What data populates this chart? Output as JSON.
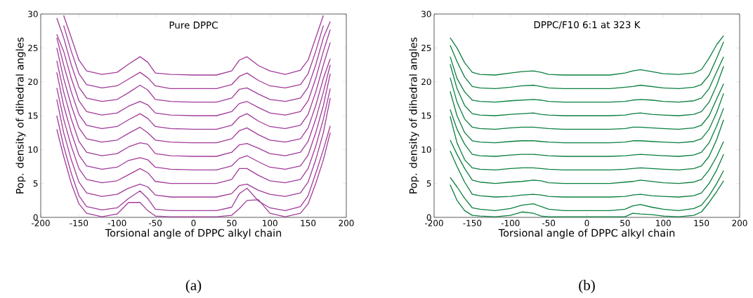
{
  "chart_data": [
    {
      "type": "line",
      "title": "Pure DPPC",
      "xlabel": "Torsional angle of DPPC alkyl chain",
      "ylabel": "Pop. density of dihedral angles",
      "annotations": [
        "(a)"
      ],
      "x": [
        -179,
        -170,
        -160,
        -150,
        -140,
        -120,
        -100,
        -85,
        -70,
        -60,
        -50,
        -30,
        0,
        30,
        50,
        60,
        70,
        85,
        100,
        120,
        140,
        150,
        160,
        170,
        179
      ],
      "xlim": [
        -200,
        200
      ],
      "xticks": [
        -200,
        -150,
        -100,
        -50,
        0,
        50,
        100,
        150,
        200
      ],
      "ylim": [
        0,
        30
      ],
      "yticks": [
        0,
        5,
        10,
        15,
        20,
        25,
        30
      ],
      "series": [
        {
          "color": "#a23b9a",
          "values": [
            13,
            9,
            5,
            2,
            0.6,
            0.1,
            0.5,
            2.2,
            2.2,
            1.0,
            0.2,
            0.1,
            0.1,
            0.1,
            0.3,
            1.3,
            2.5,
            2.6,
            0.6,
            0.1,
            0.6,
            2,
            5,
            8.5,
            12.5
          ]
        },
        {
          "color": "#a23b9a",
          "values": [
            15,
            10.5,
            6.5,
            3.2,
            1.6,
            1.1,
            1.4,
            2.8,
            3.9,
            2.8,
            1.2,
            1,
            1,
            1,
            1.5,
            3.5,
            4.3,
            2.4,
            1.4,
            1,
            1.6,
            3.2,
            6.5,
            10,
            13.5
          ]
        },
        {
          "color": "#a23b9a",
          "values": [
            17.4,
            12.5,
            8.5,
            5.2,
            3.6,
            3.1,
            3.4,
            4.3,
            4.9,
            4.5,
            3.3,
            3,
            3,
            3,
            3.5,
            4.7,
            4.9,
            4.0,
            3.4,
            3.1,
            3.6,
            5.2,
            8.5,
            12.5,
            17.6
          ]
        },
        {
          "color": "#a23b9a",
          "values": [
            19.1,
            14.5,
            10.5,
            7.2,
            5.6,
            5.1,
            5.4,
            6.3,
            7.2,
            6.6,
            5.3,
            5,
            5,
            5,
            5.6,
            7.2,
            7.2,
            6.2,
            5.4,
            5.1,
            5.6,
            7.2,
            10.5,
            14.5,
            19
          ]
        },
        {
          "color": "#a23b9a",
          "values": [
            21.4,
            16.5,
            12.5,
            9.2,
            7.6,
            7.1,
            7.4,
            8.4,
            8.8,
            8.5,
            7.4,
            7.1,
            7,
            7,
            7.6,
            8.7,
            9.1,
            8.2,
            7.4,
            7.1,
            7.6,
            9.2,
            12.5,
            16.5,
            21.2
          ]
        },
        {
          "color": "#a23b9a",
          "values": [
            23.1,
            18.5,
            14.5,
            11.2,
            9.6,
            9.1,
            9.4,
            10.4,
            11,
            10.8,
            9.4,
            9.1,
            9,
            9,
            9.6,
            10.7,
            10.9,
            10.2,
            9.4,
            9.1,
            9.6,
            11.2,
            14.5,
            18.5,
            22.5
          ]
        },
        {
          "color": "#a23b9a",
          "values": [
            25,
            20.5,
            16.5,
            13.2,
            11.6,
            11.1,
            11.4,
            12.4,
            13.3,
            12.5,
            11.4,
            11.1,
            11,
            11,
            11.6,
            12.8,
            13.2,
            12.2,
            11.4,
            11.1,
            11.6,
            13.2,
            16.5,
            20.5,
            23.4
          ]
        },
        {
          "color": "#a23b9a",
          "values": [
            26.5,
            22.5,
            18.5,
            15.2,
            13.6,
            13.1,
            13.4,
            14.4,
            15.3,
            14.6,
            13.4,
            13.1,
            13,
            13,
            13.6,
            14.8,
            15.3,
            14.2,
            13.4,
            13.1,
            13.6,
            15.2,
            18.5,
            22.5,
            25.8
          ]
        },
        {
          "color": "#a23b9a",
          "values": [
            27,
            24.5,
            20.5,
            17.2,
            15.6,
            15.1,
            15.4,
            16.4,
            17.1,
            16.6,
            15.4,
            15.1,
            15,
            15,
            15.6,
            16.8,
            17.1,
            16.2,
            15.4,
            15.1,
            15.6,
            17.2,
            20.5,
            24.5,
            27.7
          ]
        },
        {
          "color": "#a23b9a",
          "values": [
            29.4,
            26.5,
            22.5,
            19.2,
            17.6,
            17.1,
            17.4,
            18.4,
            19.5,
            18.8,
            17.4,
            17.1,
            17,
            17,
            17.6,
            18.9,
            19.1,
            18.2,
            17.4,
            17.1,
            17.6,
            19.2,
            22.5,
            26.5,
            28.9
          ]
        },
        {
          "color": "#a23b9a",
          "values": [
            null,
            28.3,
            24.5,
            21.2,
            19.6,
            19.1,
            19.4,
            20.4,
            21.4,
            20.6,
            19.4,
            19,
            19,
            19,
            19.6,
            20.8,
            21.3,
            20.2,
            19.4,
            19.1,
            19.6,
            21.2,
            24.5,
            28.3,
            null
          ]
        },
        {
          "color": "#a23b9a",
          "values": [
            null,
            29.8,
            26.5,
            23.2,
            21.6,
            21.1,
            21.4,
            22.6,
            23.7,
            22.9,
            21.3,
            21.1,
            21,
            21,
            21.6,
            23.2,
            23.7,
            22.4,
            21.6,
            21.1,
            21.7,
            23.2,
            26.5,
            29.8,
            null
          ]
        }
      ]
    },
    {
      "type": "line",
      "title": "DPPC/F10   6:1 at 323 K",
      "xlabel": "Torsional angle of DPPC alkyl chain",
      "ylabel": "Pop. density of dihedral angles",
      "annotations": [
        "(b)"
      ],
      "x": [
        -179,
        -170,
        -160,
        -150,
        -140,
        -120,
        -100,
        -85,
        -70,
        -60,
        -50,
        -30,
        0,
        30,
        50,
        60,
        70,
        85,
        100,
        120,
        140,
        150,
        160,
        170,
        179
      ],
      "xlim": [
        -200,
        200
      ],
      "xticks": [
        -200,
        -150,
        -100,
        -50,
        0,
        50,
        100,
        150,
        200
      ],
      "ylim": [
        0,
        30
      ],
      "yticks": [
        0,
        5,
        10,
        15,
        20,
        25,
        30
      ],
      "series": [
        {
          "color": "#0a7f3f",
          "values": [
            4.8,
            2.5,
            1.0,
            0.3,
            0.2,
            0.1,
            0.3,
            0.8,
            0.6,
            0.2,
            0.1,
            0.1,
            0.1,
            0.1,
            0.1,
            0.6,
            0.5,
            0.4,
            0.2,
            0.1,
            0.3,
            0.8,
            2.2,
            3.8,
            5.4
          ]
        },
        {
          "color": "#0a7f3f",
          "values": [
            5.9,
            4.5,
            2.8,
            1.4,
            1.2,
            1,
            1.3,
            1.8,
            2.0,
            1.6,
            1.2,
            1,
            1,
            1,
            1.2,
            1.7,
            1.9,
            1.5,
            1.2,
            1,
            1.3,
            1.8,
            3.2,
            5,
            6.9
          ]
        },
        {
          "color": "#0a7f3f",
          "values": [
            9.8,
            7.5,
            5.2,
            3.4,
            3.2,
            3,
            3.1,
            3.3,
            3.4,
            3.3,
            3.1,
            3,
            3,
            3,
            3.1,
            3.3,
            3.4,
            3.2,
            3.1,
            3,
            3.2,
            3.6,
            5,
            7,
            9.3
          ]
        },
        {
          "color": "#0a7f3f",
          "values": [
            11.4,
            9.3,
            7.2,
            5.5,
            5.2,
            5,
            5.2,
            5.3,
            5.5,
            5.4,
            5.1,
            5,
            5,
            5,
            5.2,
            5.3,
            5.5,
            5.3,
            5.1,
            5,
            5.2,
            5.6,
            7,
            9,
            11.2
          ]
        },
        {
          "color": "#0a7f3f",
          "values": [
            14.9,
            11,
            8.5,
            7.3,
            7.1,
            7,
            7.2,
            7.3,
            7.3,
            7.2,
            7.1,
            7,
            7,
            7,
            7.1,
            7.2,
            7.3,
            7.2,
            7.1,
            7,
            7.2,
            7.6,
            9,
            11.5,
            14.4
          ]
        },
        {
          "color": "#0a7f3f",
          "values": [
            15.9,
            13,
            10.8,
            9.3,
            9.1,
            9,
            9.2,
            9.3,
            9.3,
            9.2,
            9.1,
            9,
            9,
            9,
            9.1,
            9.2,
            9.3,
            9.2,
            9.1,
            9,
            9.2,
            9.6,
            11,
            13.5,
            16.1
          ]
        },
        {
          "color": "#0a7f3f",
          "values": [
            18.6,
            15,
            12.5,
            11.3,
            11.1,
            11,
            11.2,
            11.3,
            11.3,
            11.2,
            11.1,
            11,
            11,
            11,
            11.1,
            11.3,
            11.3,
            11.2,
            11.1,
            11,
            11.2,
            11.6,
            13,
            15.5,
            18.3
          ]
        },
        {
          "color": "#0a7f3f",
          "values": [
            20.6,
            17,
            14.5,
            13.3,
            13.1,
            13,
            13.2,
            13.3,
            13.3,
            13.2,
            13.1,
            13,
            13,
            13,
            13.1,
            13.3,
            13.3,
            13.2,
            13.1,
            13,
            13.2,
            13.6,
            15,
            17.5,
            19.7
          ]
        },
        {
          "color": "#0a7f3f",
          "values": [
            22.6,
            19,
            16.5,
            15.3,
            15.1,
            15,
            15.2,
            15.3,
            15.4,
            15.2,
            15.1,
            15,
            15,
            15,
            15.1,
            15.3,
            15.4,
            15.2,
            15.1,
            15,
            15.2,
            15.6,
            17,
            19.5,
            22.3
          ]
        },
        {
          "color": "#0a7f3f",
          "values": [
            23.7,
            20.5,
            18.5,
            17.3,
            17.1,
            17,
            17.2,
            17.3,
            17.4,
            17.3,
            17.1,
            17,
            17,
            17,
            17.1,
            17.3,
            17.4,
            17.3,
            17.1,
            17,
            17.2,
            17.6,
            19,
            21.5,
            23.7
          ]
        },
        {
          "color": "#0a7f3f",
          "values": [
            25.4,
            23,
            20.7,
            19.3,
            19.1,
            19,
            19.2,
            19.4,
            19.5,
            19.3,
            19.1,
            19,
            19,
            19,
            19.2,
            19.3,
            19.5,
            19.3,
            19.1,
            19,
            19.2,
            19.6,
            21,
            23.5,
            25.9
          ]
        },
        {
          "color": "#0a7f3f",
          "values": [
            26.5,
            25,
            22.8,
            21.4,
            21.1,
            21,
            21.3,
            21.5,
            21.6,
            21.4,
            21.1,
            21,
            21,
            21,
            21.3,
            21.6,
            21.8,
            21.5,
            21.2,
            21.1,
            21.3,
            21.8,
            23.5,
            25.5,
            26.8
          ]
        }
      ]
    }
  ]
}
